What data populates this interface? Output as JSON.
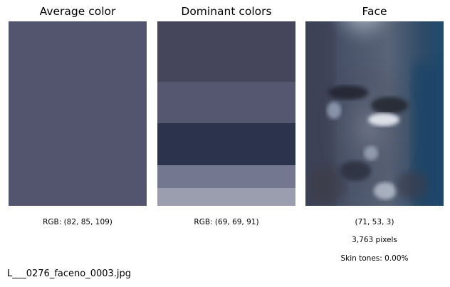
{
  "panels": {
    "average": {
      "title": "Average color",
      "rgb_label": "RGB: (82, 85, 109)",
      "color": "#52556d"
    },
    "dominant": {
      "title": "Dominant colors",
      "rgb_label": "RGB: (69, 69, 91)",
      "bands": [
        {
          "color": "#45455b",
          "fraction": 0.328
        },
        {
          "color": "#555670",
          "fraction": 0.224
        },
        {
          "color": "#2b344c",
          "fraction": 0.228
        },
        {
          "color": "#737790",
          "fraction": 0.124
        },
        {
          "color": "#9a9eae",
          "fraction": 0.096
        }
      ]
    },
    "face": {
      "title": "Face",
      "color_label": "(71, 53, 3)",
      "pixels_label": "3,763 pixels",
      "skin_label": "Skin tones: 0.00%"
    }
  },
  "filename": "L___0276_faceno_0003.jpg"
}
